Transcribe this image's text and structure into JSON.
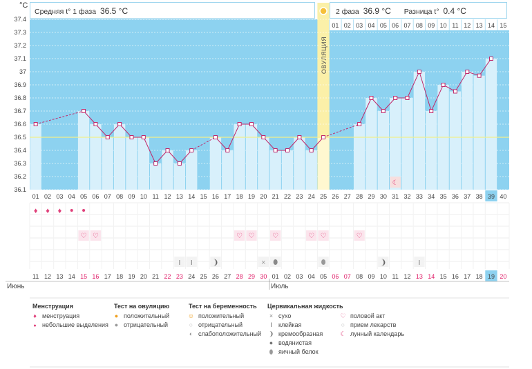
{
  "header": {
    "phase1_label": "Средняя t° 1 фаза",
    "phase1_value": "36.5 °C",
    "phase2_label": "2 фаза",
    "phase2_value": "36.9 °C",
    "diff_label": "Разница t°",
    "diff_value": "0.4 °C",
    "unit": "°C",
    "ovulation_label": "ОВУЛЯЦИЯ"
  },
  "chart_data": {
    "type": "line",
    "title": "",
    "xlabel": "",
    "ylabel": "°C",
    "ylim": [
      36.1,
      37.4
    ],
    "y_ticks": [
      "37.4",
      "37.3",
      "37.2",
      "37.1",
      "37",
      "36.9",
      "36.8",
      "36.7",
      "36.6",
      "36.5",
      "36.4",
      "36.3",
      "36.2",
      "36.1"
    ],
    "cycle_days": [
      "01",
      "02",
      "03",
      "04",
      "05",
      "06",
      "07",
      "08",
      "09",
      "10",
      "11",
      "12",
      "13",
      "14",
      "15",
      "16",
      "17",
      "18",
      "19",
      "20",
      "21",
      "22",
      "23",
      "24",
      "25",
      "26",
      "27",
      "28",
      "29",
      "30",
      "31",
      "32",
      "33",
      "34",
      "35",
      "36",
      "37",
      "38",
      "39",
      "40"
    ],
    "phase2_days": [
      "01",
      "02",
      "03",
      "04",
      "05",
      "06",
      "07",
      "08",
      "09",
      "10",
      "11",
      "12",
      "13",
      "14",
      "15"
    ],
    "dates": [
      "11",
      "12",
      "13",
      "14",
      "15",
      "16",
      "17",
      "18",
      "19",
      "20",
      "21",
      "22",
      "23",
      "24",
      "25",
      "26",
      "27",
      "28",
      "29",
      "30",
      "01",
      "02",
      "03",
      "04",
      "05",
      "06",
      "07",
      "08",
      "09",
      "10",
      "11",
      "12",
      "13",
      "14",
      "15",
      "16",
      "17",
      "18",
      "19",
      "20"
    ],
    "red_dates_idx": [
      4,
      5,
      11,
      12,
      17,
      18,
      19,
      25,
      26,
      32,
      33,
      39
    ],
    "month_labels": [
      {
        "label": "Июнь",
        "at_index": 0
      },
      {
        "label": "Июль",
        "at_index": 20
      }
    ],
    "series": [
      {
        "values": [
          36.6,
          null,
          null,
          null,
          36.7,
          36.6,
          36.5,
          36.6,
          36.5,
          36.5,
          36.3,
          36.4,
          36.3,
          36.4,
          null,
          36.5,
          36.4,
          36.6,
          36.6,
          36.5,
          36.4,
          36.4,
          36.5,
          36.4,
          36.5,
          null,
          null,
          36.6,
          36.8,
          36.7,
          36.8,
          36.8,
          37.0,
          36.7,
          36.9,
          36.85,
          37.0,
          36.97,
          37.1,
          null
        ]
      }
    ],
    "threshold": 36.5,
    "ovulation_day_index": 24,
    "current_day_index": 38,
    "grid": true
  },
  "markers": {
    "menstruation": [
      0,
      1,
      2
    ],
    "light_bleeding": [
      3,
      4
    ],
    "intercourse": [
      4,
      5,
      17,
      18,
      20,
      23,
      24,
      27
    ],
    "sticky": [
      12,
      13,
      32
    ],
    "creamy": [
      15,
      29
    ],
    "dry": [
      19
    ],
    "watery": [
      20
    ],
    "egg_white": [
      24
    ],
    "lunar": [
      30
    ]
  },
  "legend": {
    "menstruation_title": "Менструация",
    "menstruation_items": [
      "менструация",
      "небольшие выделения"
    ],
    "ovulation_test_title": "Тест на овуляцию",
    "ovulation_test_items": [
      "положительный",
      "отрицательный"
    ],
    "pregnancy_test_title": "Тест на беременность",
    "pregnancy_test_items": [
      "положительный",
      "отрицательный",
      "слабоположительный"
    ],
    "cervical_title": "Цервикальная жидкость",
    "cervical_items": [
      "сухо",
      "клейкая",
      "кремообразная",
      "водянистая",
      "яичный белок"
    ],
    "other_items": [
      "половой акт",
      "прием лекарств",
      "лунный календарь"
    ]
  }
}
